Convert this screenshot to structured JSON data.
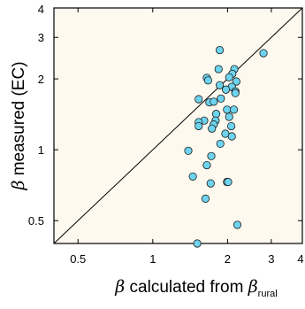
{
  "chart_data": {
    "type": "scatter",
    "title": "",
    "xscale": "log",
    "yscale": "log",
    "xlim": [
      0.4,
      4
    ],
    "ylim": [
      0.4,
      4
    ],
    "xticks": [
      0.5,
      1,
      2,
      3,
      4
    ],
    "xtick_labels": [
      "0.5",
      "1",
      "2",
      "3",
      "4"
    ],
    "yticks": [
      0.5,
      1,
      2,
      3,
      4
    ],
    "ytick_labels": [
      "0.5",
      "1",
      "2",
      "3",
      "4"
    ],
    "xlabel": {
      "beta_symbol": "β",
      "text": " calculated from ",
      "subscript": "rural"
    },
    "ylabel": {
      "beta_symbol": "β",
      "text": " measured (EC)"
    },
    "reference_line": "1:1",
    "grid": false,
    "background": "#fdf9ef",
    "point_fill": "#6ed3ee",
    "point_stroke": "#1a1a1a",
    "points": [
      [
        1.86,
        2.65
      ],
      [
        2.79,
        2.57
      ],
      [
        2.13,
        2.2
      ],
      [
        1.84,
        2.2
      ],
      [
        2.09,
        2.1
      ],
      [
        1.65,
        2.02
      ],
      [
        2.03,
        2.03
      ],
      [
        2.17,
        1.95
      ],
      [
        1.67,
        1.97
      ],
      [
        1.86,
        1.88
      ],
      [
        2.08,
        1.85
      ],
      [
        2.15,
        1.77
      ],
      [
        2.15,
        1.74
      ],
      [
        1.97,
        1.8
      ],
      [
        1.53,
        1.64
      ],
      [
        1.69,
        1.59
      ],
      [
        1.76,
        1.6
      ],
      [
        1.88,
        1.65
      ],
      [
        1.99,
        1.48
      ],
      [
        2.12,
        1.48
      ],
      [
        1.8,
        1.42
      ],
      [
        2.03,
        1.38
      ],
      [
        1.61,
        1.33
      ],
      [
        1.79,
        1.33
      ],
      [
        1.53,
        1.31
      ],
      [
        1.53,
        1.26
      ],
      [
        1.76,
        1.28
      ],
      [
        1.73,
        1.23
      ],
      [
        2.07,
        1.26
      ],
      [
        1.96,
        1.17
      ],
      [
        2.08,
        1.14
      ],
      [
        1.87,
        1.06
      ],
      [
        1.39,
        0.99
      ],
      [
        1.72,
        0.94
      ],
      [
        1.65,
        0.86
      ],
      [
        1.45,
        0.77
      ],
      [
        1.71,
        0.72
      ],
      [
        1.99,
        0.73
      ],
      [
        2.01,
        0.73
      ],
      [
        1.63,
        0.62
      ],
      [
        2.19,
        0.48
      ],
      [
        1.51,
        0.4
      ]
    ]
  }
}
